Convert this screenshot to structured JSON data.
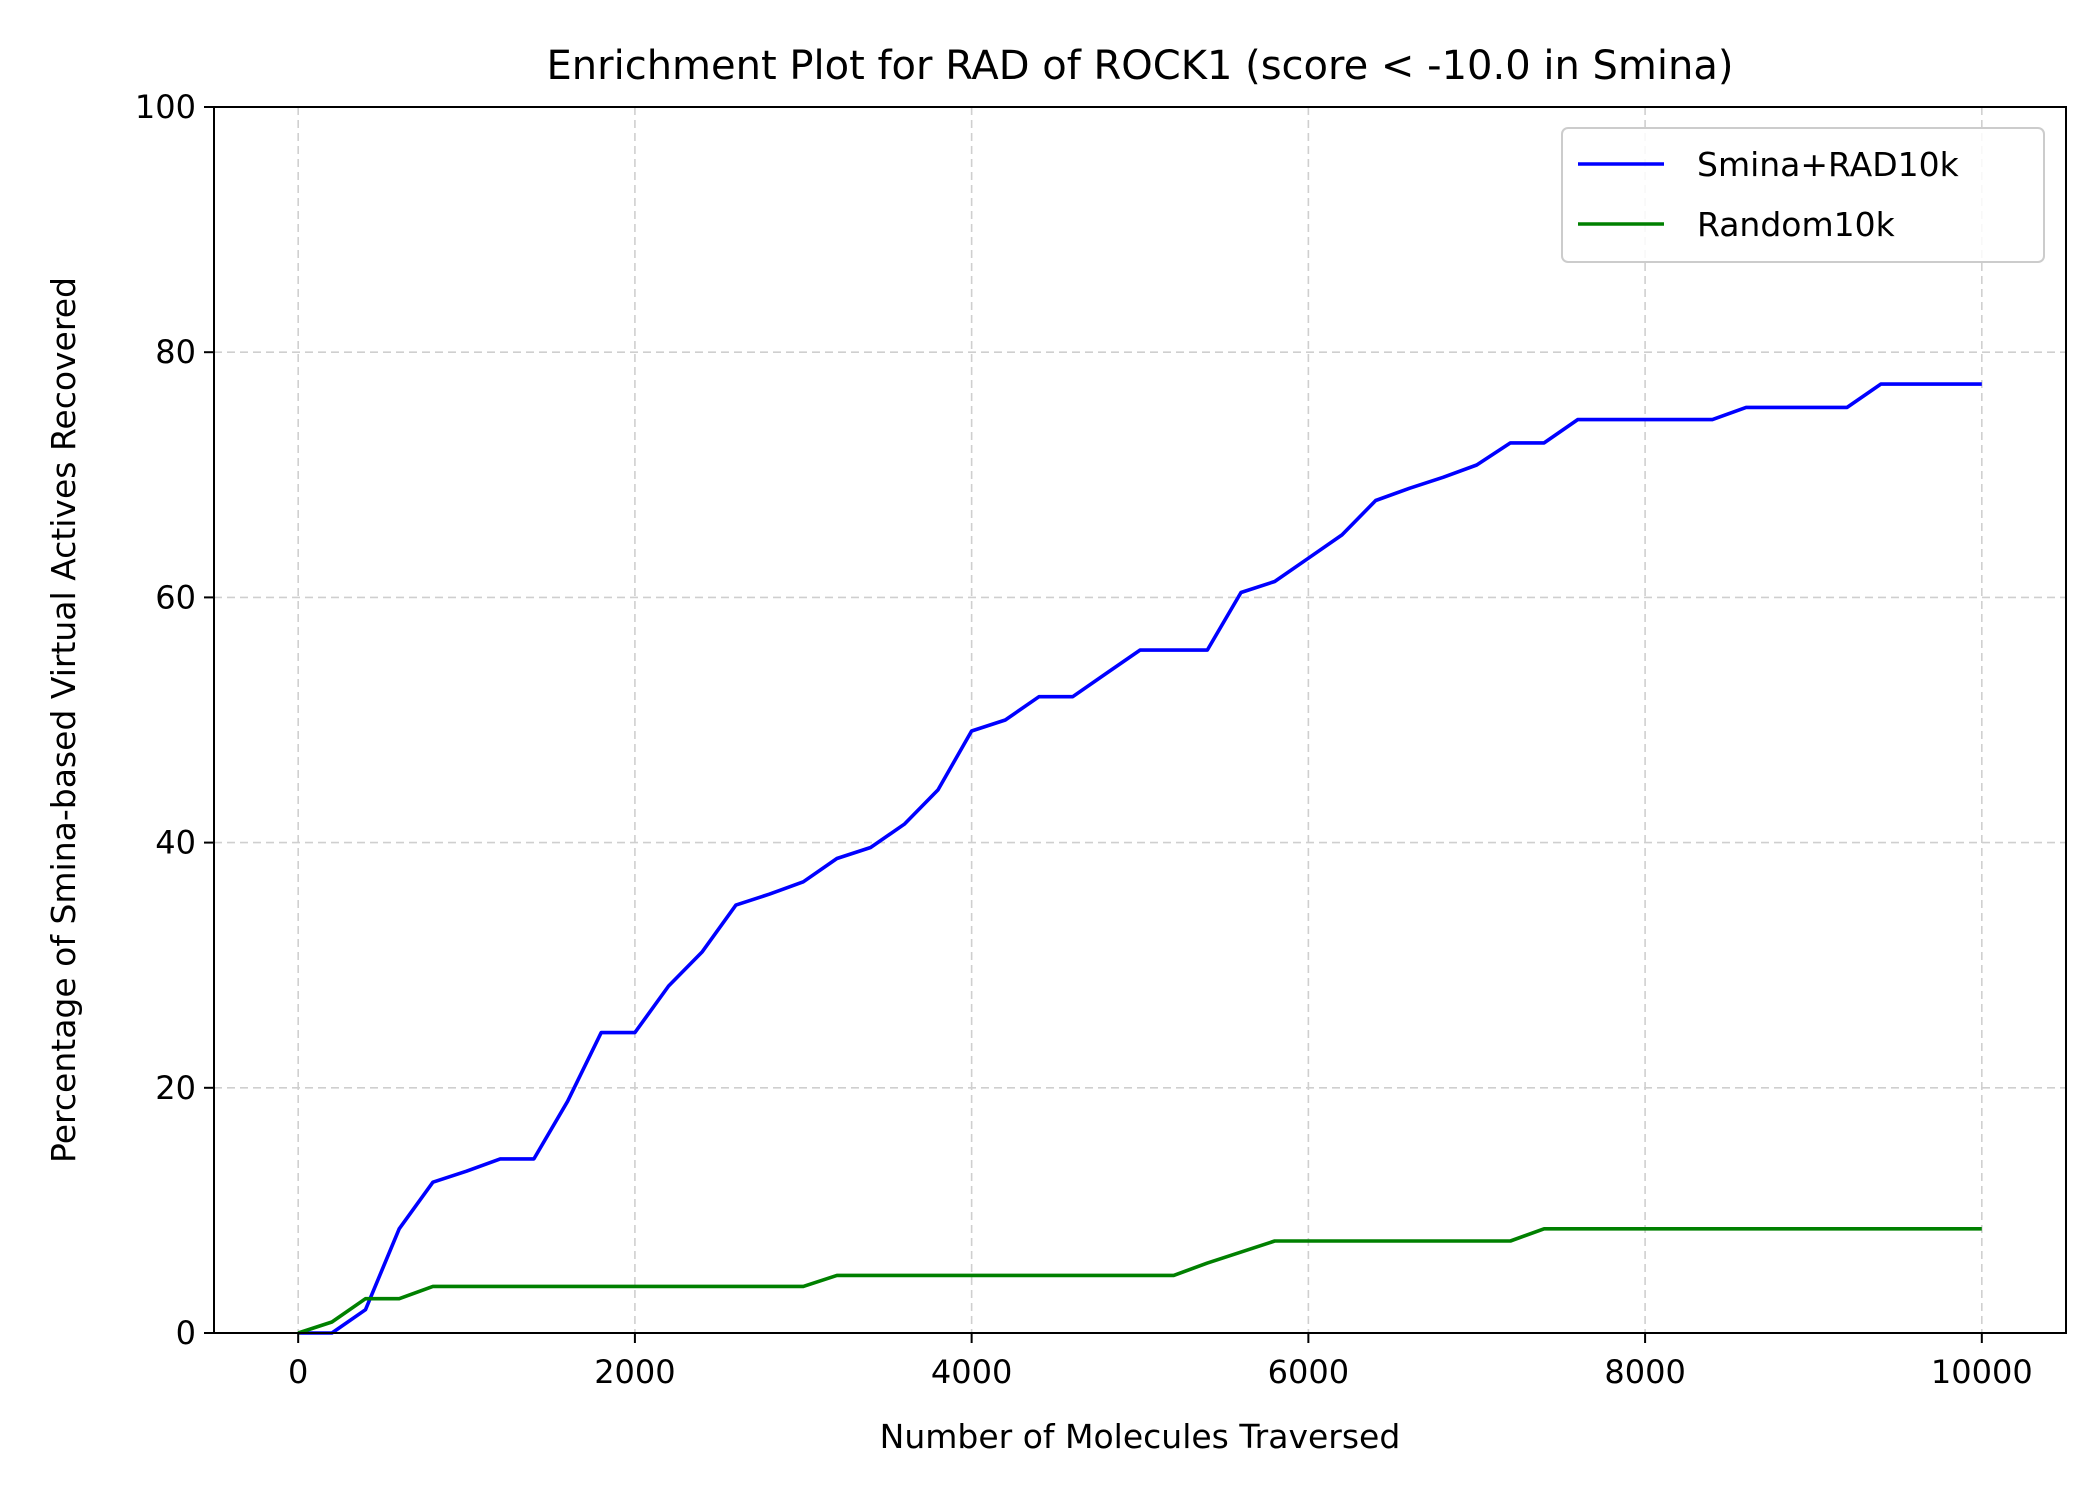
{
  "chart_data": {
    "type": "line",
    "title": "Enrichment Plot for RAD of ROCK1 (score < -10.0 in Smina)",
    "xlabel": "Number of Molecules Traversed",
    "ylabel": "Percentage of Smina-based Virtual Actives Recovered",
    "xlim": [
      -500,
      10500
    ],
    "ylim": [
      0,
      100
    ],
    "x_ticks": [
      0,
      2000,
      4000,
      6000,
      8000,
      10000
    ],
    "y_ticks": [
      0,
      20,
      40,
      60,
      80,
      100
    ],
    "grid": true,
    "legend_position": "top-right",
    "series": [
      {
        "name": "Smina+RAD10k",
        "color": "#0000ff",
        "x": [
          0,
          200,
          400,
          600,
          800,
          1000,
          1200,
          1400,
          1600,
          1800,
          2000,
          2200,
          2400,
          2600,
          2800,
          3000,
          3200,
          3400,
          3600,
          3800,
          4000,
          4200,
          4400,
          4600,
          4800,
          5000,
          5200,
          5400,
          5600,
          5800,
          6000,
          6200,
          6400,
          6600,
          6800,
          7000,
          7200,
          7400,
          7600,
          7800,
          8000,
          8200,
          8400,
          8600,
          8800,
          9000,
          9200,
          9400,
          9600,
          9800,
          10000
        ],
        "y": [
          0,
          0,
          1.9,
          8.5,
          12.3,
          13.2,
          14.2,
          14.2,
          18.9,
          24.5,
          24.5,
          28.3,
          31.1,
          34.9,
          35.8,
          36.8,
          38.7,
          39.6,
          41.5,
          44.3,
          49.1,
          50.0,
          51.9,
          51.9,
          53.8,
          55.7,
          55.7,
          55.7,
          60.4,
          61.3,
          63.2,
          65.1,
          67.9,
          68.9,
          69.8,
          70.8,
          72.6,
          72.6,
          74.5,
          74.5,
          74.5,
          74.5,
          74.5,
          75.5,
          75.5,
          75.5,
          75.5,
          77.4,
          77.4,
          77.4,
          77.4
        ]
      },
      {
        "name": "Random10k",
        "color": "#008000",
        "x": [
          0,
          200,
          400,
          600,
          800,
          1000,
          1200,
          1400,
          1600,
          1800,
          2000,
          2200,
          2400,
          2600,
          2800,
          3000,
          3200,
          3400,
          3600,
          3800,
          4000,
          4200,
          4400,
          4600,
          4800,
          5000,
          5200,
          5400,
          5600,
          5800,
          6000,
          6200,
          6400,
          6600,
          6800,
          7000,
          7200,
          7400,
          7600,
          7800,
          8000,
          8200,
          8400,
          8600,
          8800,
          9000,
          9200,
          9400,
          9600,
          9800,
          10000
        ],
        "y": [
          0,
          0.9,
          2.8,
          2.8,
          3.8,
          3.8,
          3.8,
          3.8,
          3.8,
          3.8,
          3.8,
          3.8,
          3.8,
          3.8,
          3.8,
          3.8,
          4.7,
          4.7,
          4.7,
          4.7,
          4.7,
          4.7,
          4.7,
          4.7,
          4.7,
          4.7,
          4.7,
          5.7,
          6.6,
          7.5,
          7.5,
          7.5,
          7.5,
          7.5,
          7.5,
          7.5,
          7.5,
          8.5,
          8.5,
          8.5,
          8.5,
          8.5,
          8.5,
          8.5,
          8.5,
          8.5,
          8.5,
          8.5,
          8.5,
          8.5,
          8.5
        ]
      }
    ]
  }
}
